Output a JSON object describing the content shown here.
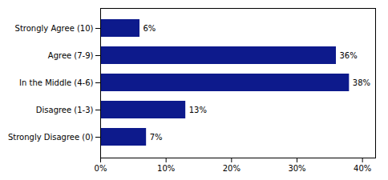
{
  "chart_data": {
    "type": "bar",
    "orientation": "horizontal",
    "categories": [
      "Strongly Agree (10)",
      "Agree (7-9)",
      "In the Middle (4-6)",
      "Disagree (1-3)",
      "Strongly Disagree (0)"
    ],
    "values": [
      6,
      36,
      38,
      13,
      7
    ],
    "value_labels": [
      "6%",
      "36%",
      "38%",
      "13%",
      "7%"
    ],
    "color": "#0d1a8c",
    "xlim": [
      0,
      42
    ],
    "xticks": [
      {
        "value": 0,
        "label": "0%"
      },
      {
        "value": 10,
        "label": "10%"
      },
      {
        "value": 20,
        "label": "20%"
      },
      {
        "value": 30,
        "label": "30%"
      },
      {
        "value": 40,
        "label": "40%"
      }
    ],
    "grid": false,
    "data_labels": true
  }
}
